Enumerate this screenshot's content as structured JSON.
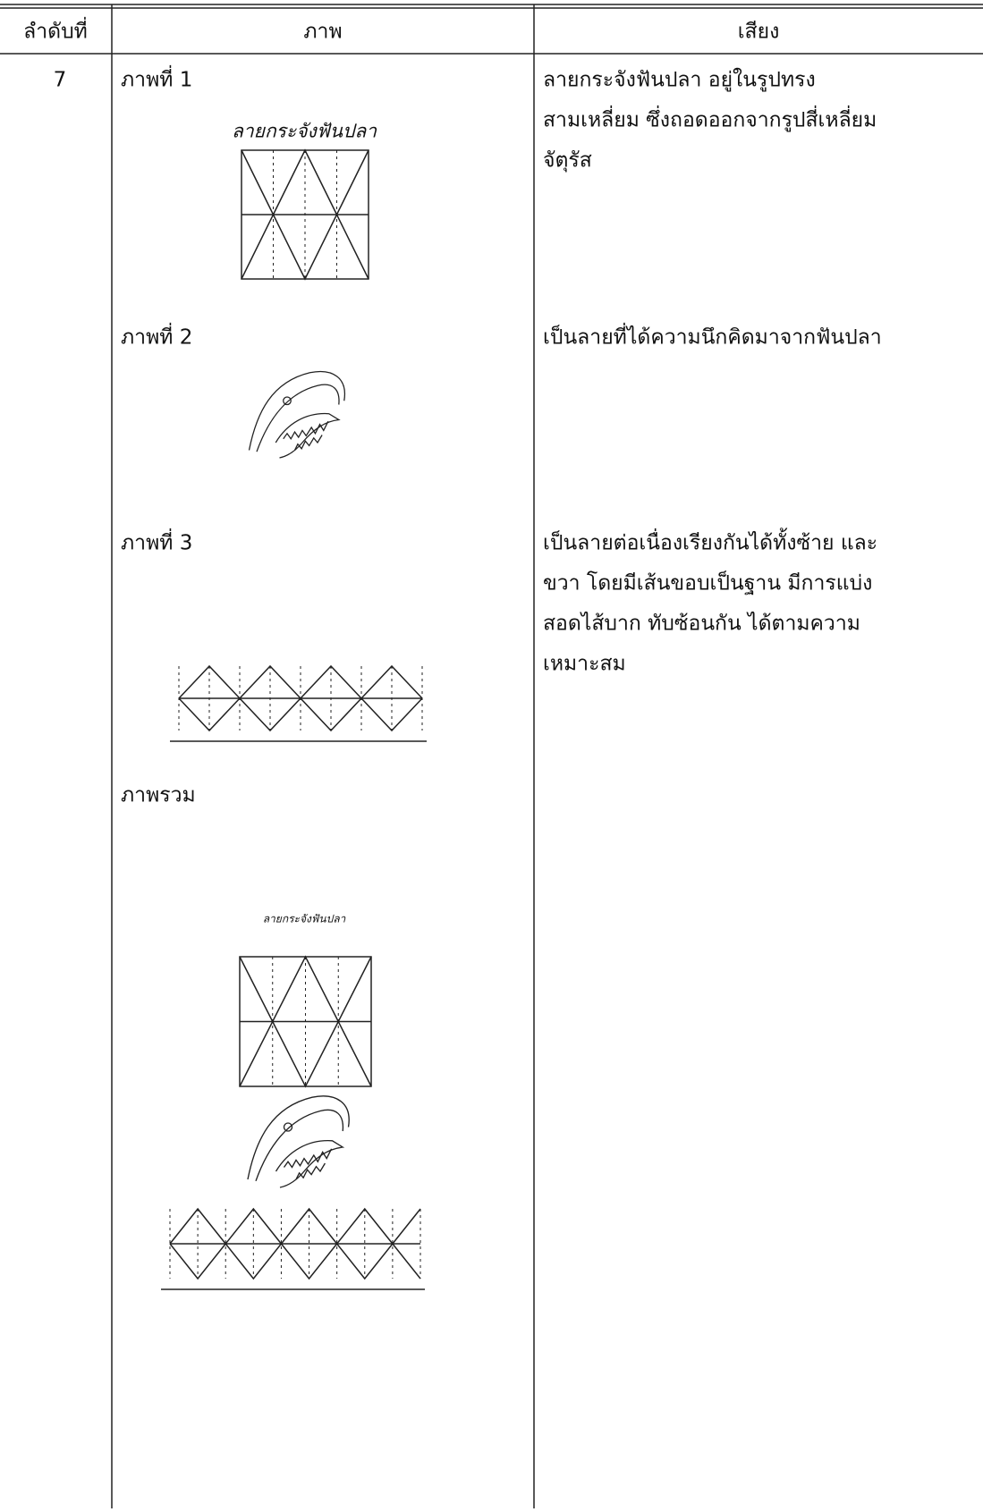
{
  "header": {
    "columns": [
      "ลำดับที่",
      "ภาพ",
      "เสียง"
    ]
  },
  "row": {
    "number": "7",
    "figures": [
      {
        "label": "ภาพที่ 1",
        "caption": "ลายกระจังฟันปลา",
        "description": [
          "ลายกระจังฟันปลา อยู่ในรูปทรง",
          "สามเหลี่ยม ซึ่งถอดออกจากรูปสี่เหลี่ยม",
          "จัตุรัส"
        ]
      },
      {
        "label": "ภาพที่ 2",
        "description": [
          "เป็นลายที่ได้ความนึกคิดมาจากฟันปลา"
        ]
      },
      {
        "label": "ภาพที่ 3",
        "description": [
          "เป็นลายต่อเนื่องเรียงกันได้ทั้งซ้าย และ",
          "ขวา โดยมีเส้นขอบเป็นฐาน มีการแบ่ง",
          "สอดไส้บาก ทับซ้อนกัน ได้ตามความ",
          "เหมาะสม"
        ]
      },
      {
        "label": "ภาพรวม",
        "caption": "ลายกระจังฟันปลา"
      }
    ]
  }
}
